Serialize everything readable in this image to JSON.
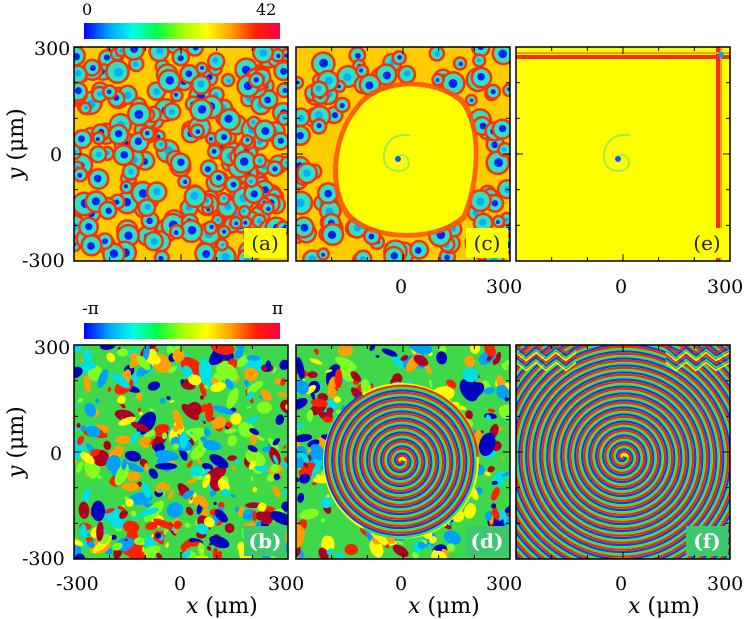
{
  "figure": {
    "amplitude_colorbar": {
      "min_label": "0",
      "max_label": "42"
    },
    "phase_colorbar": {
      "min_label": "-π",
      "max_label": "π"
    },
    "panels": [
      {
        "id": "a",
        "label": "(a)",
        "quantity": "amplitude",
        "state": "turbulent"
      },
      {
        "id": "c",
        "label": "(c)",
        "quantity": "amplitude",
        "state": "spiral-core-growing"
      },
      {
        "id": "e",
        "label": "(e)",
        "quantity": "amplitude",
        "state": "uniform-with-core"
      },
      {
        "id": "b",
        "label": "(b)",
        "quantity": "phase",
        "state": "turbulent"
      },
      {
        "id": "d",
        "label": "(d)",
        "quantity": "phase",
        "state": "spiral-domain"
      },
      {
        "id": "f",
        "label": "(f)",
        "quantity": "phase",
        "state": "full-spiral"
      }
    ],
    "y_axis": {
      "label_var": "y",
      "label_unit": " (μm)",
      "ticks": [
        "300",
        "0",
        "-300"
      ]
    },
    "x_axis": {
      "label_var": "x",
      "label_unit": " (μm)",
      "top_row_ticks": [
        "0",
        "300",
        "0",
        "300"
      ],
      "bottom_row_ticks": [
        "-300",
        "0",
        "300",
        "0",
        "300",
        "0",
        "300"
      ]
    }
  }
}
